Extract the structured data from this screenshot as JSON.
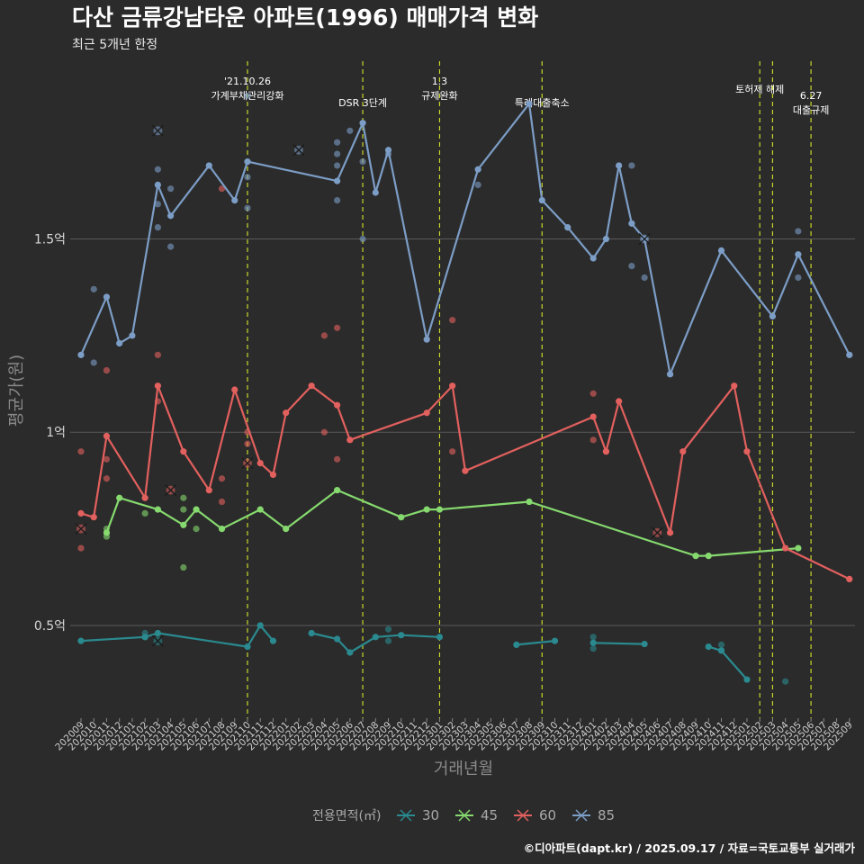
{
  "colors": {
    "background": "#2b2b2b",
    "grid": "#5a5a5a",
    "event_line": "#c8d62a",
    "s30": "#2a8a8f",
    "s45": "#86d96e",
    "s60": "#e2605e",
    "s85": "#7c9dc6"
  },
  "chart_data": {
    "type": "line",
    "title": "다산 금류강남타운 아파트(1996) 매매가격 변화",
    "subtitle": "최근 5개년 한정",
    "xlabel": "거래년월",
    "ylabel": "평균가(원)",
    "caption": "©디아파트(dapt.kr) / 2025.09.17 / 자료=국토교통부 실거래가",
    "ylim": [
      0.26,
      1.96
    ],
    "yticks": [
      {
        "value": 0.5,
        "label": "0.5억"
      },
      {
        "value": 1.0,
        "label": "1억"
      },
      {
        "value": 1.5,
        "label": "1.5억"
      }
    ],
    "grid": true,
    "legend_position": "bottom",
    "legend_title": "전용면적(㎡)",
    "categories": [
      "202009",
      "202010",
      "202011",
      "202012",
      "202101",
      "202102",
      "202103",
      "202104",
      "202105",
      "202106",
      "202107",
      "202108",
      "202109",
      "202110",
      "202111",
      "202112",
      "202201",
      "202202",
      "202203",
      "202204",
      "202205",
      "202206",
      "202207",
      "202208",
      "202209",
      "202210",
      "202211",
      "202212",
      "202301",
      "202302",
      "202303",
      "202304",
      "202305",
      "202306",
      "202307",
      "202308",
      "202309",
      "202310",
      "202311",
      "202312",
      "202401",
      "202402",
      "202403",
      "202404",
      "202405",
      "202406",
      "202407",
      "202408",
      "202409",
      "202410",
      "202411",
      "202412",
      "202501",
      "202502",
      "202503",
      "202504",
      "202505",
      "202506",
      "202507",
      "202508",
      "202509"
    ],
    "events": [
      {
        "x": "202110",
        "label": "'21.10.26\n가계부채관리강화"
      },
      {
        "x": "202207",
        "label": "DSR 3단계"
      },
      {
        "x": "202301",
        "label": "1.3\n규제완화"
      },
      {
        "x": "202309",
        "label": "특례대출축소"
      },
      {
        "x": "202502",
        "label": "토허제 해제"
      },
      {
        "x": "202503",
        "label": ""
      },
      {
        "x": "202506",
        "label": "6.27\n대출규제"
      }
    ],
    "series": [
      {
        "name": "30",
        "color_key": "s30",
        "segments": [
          [
            [
              "202009",
              0.46
            ],
            [
              "202102",
              0.47
            ],
            [
              "202103",
              0.48
            ],
            [
              "202110",
              0.445
            ],
            [
              "202111",
              0.5
            ],
            [
              "202112",
              0.46
            ]
          ],
          [
            [
              "202203",
              0.48
            ],
            [
              "202205",
              0.465
            ],
            [
              "202206",
              0.43
            ],
            [
              "202208",
              0.47
            ],
            [
              "202210",
              0.475
            ],
            [
              "202301",
              0.47
            ]
          ],
          [
            [
              "202307",
              0.45
            ],
            [
              "202310",
              0.46
            ]
          ],
          [
            [
              "202401",
              0.455
            ],
            [
              "202405",
              0.452
            ]
          ],
          [
            [
              "202410",
              0.445
            ],
            [
              "202411",
              0.435
            ],
            [
              "202501",
              0.36
            ]
          ]
        ],
        "points": [
          [
            "202102",
            0.48
          ],
          [
            "202102",
            0.47
          ],
          [
            "202209",
            0.49
          ],
          [
            "202209",
            0.46
          ],
          [
            "202401",
            0.47
          ],
          [
            "202401",
            0.44
          ],
          [
            "202411",
            0.45
          ],
          [
            "202504",
            0.355
          ]
        ],
        "crosses": [
          [
            "202103",
            0.46
          ]
        ]
      },
      {
        "name": "45",
        "color_key": "s45",
        "segments": [
          [
            [
              "202011",
              0.74
            ],
            [
              "202012",
              0.83
            ],
            [
              "202103",
              0.8
            ],
            [
              "202105",
              0.76
            ],
            [
              "202106",
              0.8
            ],
            [
              "202108",
              0.75
            ],
            [
              "202111",
              0.8
            ],
            [
              "202201",
              0.75
            ],
            [
              "202205",
              0.85
            ],
            [
              "202210",
              0.78
            ],
            [
              "202212",
              0.8
            ],
            [
              "202301",
              0.8
            ],
            [
              "202308",
              0.82
            ],
            [
              "202409",
              0.68
            ],
            [
              "202410",
              0.68
            ],
            [
              "202505",
              0.7
            ]
          ]
        ],
        "points": [
          [
            "202011",
            0.75
          ],
          [
            "202011",
            0.73
          ],
          [
            "202102",
            0.79
          ],
          [
            "202105",
            0.83
          ],
          [
            "202105",
            0.8
          ],
          [
            "202105",
            0.65
          ],
          [
            "202106",
            0.75
          ]
        ],
        "crosses": []
      },
      {
        "name": "60",
        "color_key": "s60",
        "segments": [
          [
            [
              "202009",
              0.79
            ],
            [
              "202010",
              0.78
            ],
            [
              "202011",
              0.99
            ],
            [
              "202102",
              0.83
            ],
            [
              "202103",
              1.12
            ],
            [
              "202105",
              0.95
            ],
            [
              "202107",
              0.85
            ],
            [
              "202109",
              1.11
            ],
            [
              "202111",
              0.92
            ],
            [
              "202112",
              0.89
            ],
            [
              "202201",
              1.05
            ],
            [
              "202203",
              1.12
            ],
            [
              "202205",
              1.07
            ],
            [
              "202206",
              0.98
            ],
            [
              "202212",
              1.05
            ],
            [
              "202302",
              1.12
            ],
            [
              "202303",
              0.9
            ],
            [
              "202401",
              1.04
            ],
            [
              "202402",
              0.95
            ],
            [
              "202403",
              1.08
            ],
            [
              "202407",
              0.74
            ],
            [
              "202408",
              0.95
            ],
            [
              "202412",
              1.12
            ],
            [
              "202501",
              0.95
            ],
            [
              "202504",
              0.7
            ],
            [
              "202509",
              0.62
            ]
          ]
        ],
        "points": [
          [
            "202009",
            0.95
          ],
          [
            "202009",
            0.7
          ],
          [
            "202011",
            1.16
          ],
          [
            "202011",
            0.93
          ],
          [
            "202011",
            0.88
          ],
          [
            "202103",
            1.2
          ],
          [
            "202103",
            1.08
          ],
          [
            "202108",
            1.63
          ],
          [
            "202108",
            0.88
          ],
          [
            "202108",
            0.82
          ],
          [
            "202110",
            1.0
          ],
          [
            "202110",
            0.97
          ],
          [
            "202204",
            1.25
          ],
          [
            "202204",
            1.0
          ],
          [
            "202205",
            1.27
          ],
          [
            "202205",
            0.93
          ],
          [
            "202302",
            1.29
          ],
          [
            "202302",
            0.95
          ],
          [
            "202401",
            1.1
          ],
          [
            "202401",
            0.98
          ],
          [
            "202402",
            0.95
          ]
        ],
        "crosses": [
          [
            "202009",
            0.75
          ],
          [
            "202104",
            0.85
          ],
          [
            "202110",
            0.92
          ],
          [
            "202406",
            0.74
          ]
        ]
      },
      {
        "name": "85",
        "color_key": "s85",
        "segments": [
          [
            [
              "202009",
              1.2
            ],
            [
              "202011",
              1.35
            ],
            [
              "202012",
              1.23
            ],
            [
              "202101",
              1.25
            ],
            [
              "202103",
              1.64
            ],
            [
              "202104",
              1.56
            ],
            [
              "202107",
              1.69
            ],
            [
              "202109",
              1.6
            ],
            [
              "202110",
              1.7
            ],
            [
              "202205",
              1.65
            ],
            [
              "202207",
              1.8
            ],
            [
              "202208",
              1.62
            ],
            [
              "202209",
              1.73
            ],
            [
              "202212",
              1.24
            ],
            [
              "202304",
              1.68
            ],
            [
              "202308",
              1.85
            ],
            [
              "202309",
              1.6
            ],
            [
              "202311",
              1.53
            ],
            [
              "202401",
              1.45
            ],
            [
              "202402",
              1.5
            ],
            [
              "202403",
              1.69
            ],
            [
              "202404",
              1.54
            ],
            [
              "202405",
              1.5
            ],
            [
              "202407",
              1.15
            ],
            [
              "202411",
              1.47
            ],
            [
              "202503",
              1.3
            ],
            [
              "202505",
              1.46
            ],
            [
              "202509",
              1.2
            ]
          ]
        ],
        "points": [
          [
            "202010",
            1.37
          ],
          [
            "202010",
            1.18
          ],
          [
            "202103",
            1.68
          ],
          [
            "202103",
            1.59
          ],
          [
            "202103",
            1.53
          ],
          [
            "202104",
            1.63
          ],
          [
            "202104",
            1.48
          ],
          [
            "202110",
            1.87
          ],
          [
            "202110",
            1.66
          ],
          [
            "202110",
            1.58
          ],
          [
            "202205",
            1.72
          ],
          [
            "202205",
            1.75
          ],
          [
            "202205",
            1.6
          ],
          [
            "202205",
            1.69
          ],
          [
            "202206",
            1.78
          ],
          [
            "202207",
            1.7
          ],
          [
            "202207",
            1.5
          ],
          [
            "202209",
            1.72
          ],
          [
            "202304",
            1.64
          ],
          [
            "202404",
            1.69
          ],
          [
            "202404",
            1.43
          ],
          [
            "202405",
            1.4
          ],
          [
            "202505",
            1.52
          ],
          [
            "202505",
            1.4
          ]
        ],
        "crosses": [
          [
            "202103",
            1.78
          ],
          [
            "202202",
            1.73
          ],
          [
            "202405",
            1.5
          ]
        ]
      }
    ]
  }
}
